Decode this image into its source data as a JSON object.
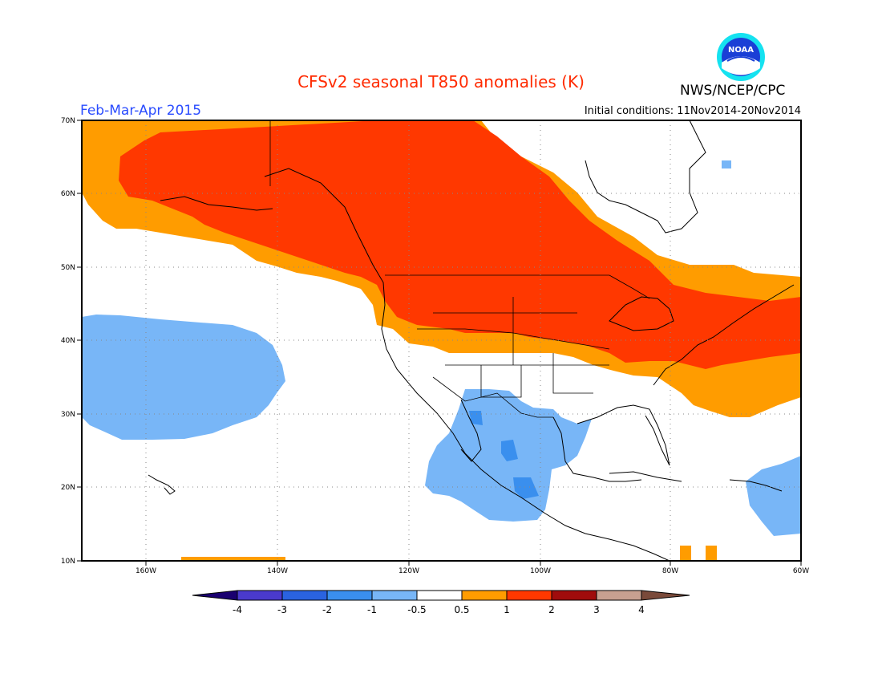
{
  "header": {
    "title": "CFSv2 seasonal T850 anomalies (K)",
    "title_color": "#ff2a00",
    "period": "Feb-Mar-Apr 2015",
    "period_color": "#2a4cff",
    "initial_conditions": "Initial conditions: 11Nov2014-20Nov2014",
    "agency": "NWS/NCEP/CPC",
    "logo_text": "NOAA"
  },
  "map": {
    "lat_labels": [
      "70N",
      "60N",
      "50N",
      "40N",
      "30N",
      "20N",
      "10N"
    ],
    "lon_labels": [
      "160W",
      "140W",
      "120W",
      "100W",
      "80W",
      "60W"
    ],
    "lon_range": [
      -172,
      -60
    ],
    "lat_range": [
      10,
      70
    ]
  },
  "colorbar": {
    "labels": [
      "-4",
      "-3",
      "-2",
      "-1",
      "-0.5",
      "0.5",
      "1",
      "2",
      "3",
      "4"
    ],
    "colors": [
      "#1a0070",
      "#4a3acc",
      "#2a63e0",
      "#3a8fee",
      "#78b6f7",
      "#ffffff",
      "#ff9c00",
      "#ff3800",
      "#a00c0c",
      "#c8a090",
      "#7a4a3a"
    ]
  },
  "anomaly_colors": {
    "warm1": "#ff9c00",
    "warm2": "#ff3800",
    "cool1": "#78b6f7",
    "cool2": "#3a8fee"
  }
}
